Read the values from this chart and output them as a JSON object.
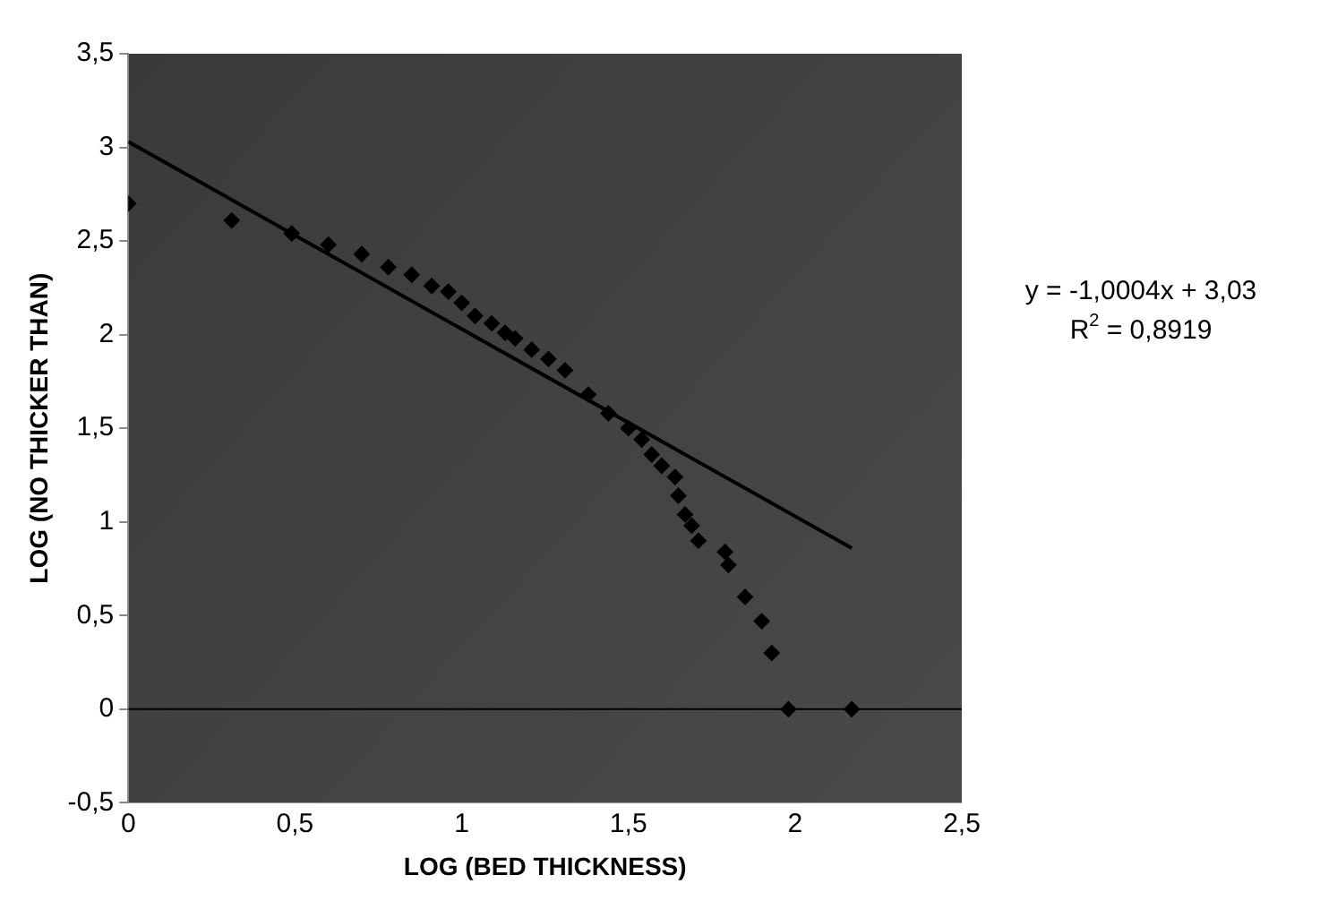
{
  "chart_data": {
    "type": "scatter",
    "xlabel": "LOG (BED THICKNESS)",
    "ylabel": "LOG (NO THICKER THAN)",
    "x": [
      0,
      0.31,
      0.49,
      0.6,
      0.7,
      0.78,
      0.85,
      0.91,
      0.96,
      1.0,
      1.04,
      1.09,
      1.13,
      1.16,
      1.21,
      1.26,
      1.31,
      1.38,
      1.44,
      1.5,
      1.54,
      1.57,
      1.6,
      1.64,
      1.65,
      1.67,
      1.69,
      1.71,
      1.79,
      1.8,
      1.85,
      1.9,
      1.93,
      1.98,
      2.17
    ],
    "series": [
      {
        "color": "#000000",
        "marker": "diamond",
        "values": [
          2.7,
          2.61,
          2.54,
          2.48,
          2.43,
          2.36,
          2.32,
          2.26,
          2.23,
          2.17,
          2.1,
          2.06,
          2.01,
          1.98,
          1.92,
          1.87,
          1.81,
          1.68,
          1.58,
          1.5,
          1.44,
          1.36,
          1.3,
          1.24,
          1.14,
          1.04,
          0.98,
          0.9,
          0.84,
          0.77,
          0.6,
          0.47,
          0.3,
          0,
          0
        ]
      },
      {
        "type": "line",
        "color": "#000000",
        "x": [
          0,
          2.17
        ],
        "values": [
          3.03,
          0.86
        ],
        "marker": "none",
        "line_style": "solid"
      }
    ],
    "xlim": [
      0,
      2.5
    ],
    "ylim": [
      -0.5,
      3.5
    ],
    "xticks": [
      0,
      {
        "value": 0.5,
        "label": "0,5"
      },
      1,
      {
        "value": 1.5,
        "label": "1,5"
      },
      2,
      {
        "value": 2.5,
        "label": "2,5"
      }
    ],
    "yticks": [
      {
        "value": -0.5,
        "label": "-0,5"
      },
      0,
      {
        "value": 0.5,
        "label": "0,5"
      },
      1,
      {
        "value": 1.5,
        "label": "1,5"
      },
      2,
      {
        "value": 2.5,
        "label": "2,5"
      },
      3,
      {
        "value": 3.5,
        "label": "3,5"
      }
    ],
    "ref_lines": [
      {
        "axis": "y",
        "value": 0,
        "color": "#000000"
      }
    ],
    "annotations": [
      "y = -1,0004x + 3,03",
      "R$^{2}$ = 0,8919"
    ],
    "grid": false,
    "legend": false
  }
}
